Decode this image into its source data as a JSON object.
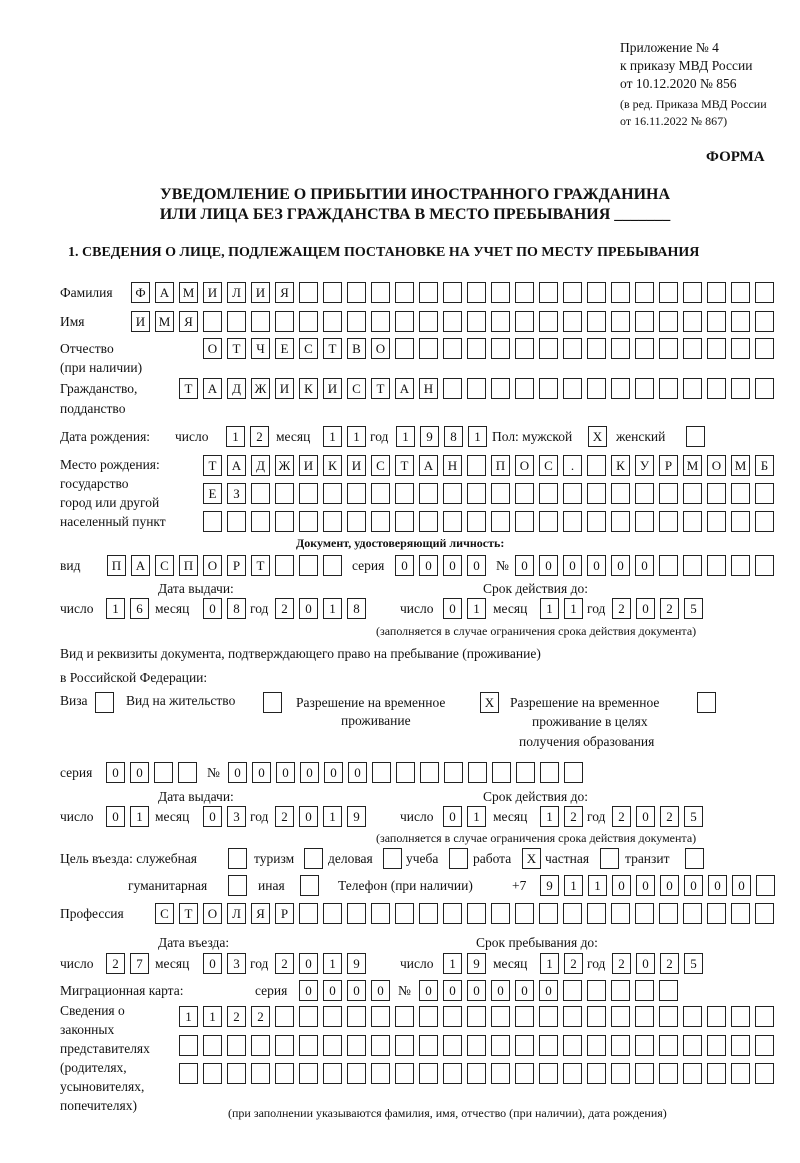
{
  "header": {
    "l1": "Приложение № 4",
    "l2": "к приказу МВД России",
    "l3": "от 10.12.2020 № 856",
    "l4": "(в ред. Приказа МВД России",
    "l5": "от 16.11.2022 № 867)",
    "forma": "ФОРМА"
  },
  "title": {
    "l1": "УВЕДОМЛЕНИЕ О ПРИБЫТИИ ИНОСТРАННОГО ГРАЖДАНИНА",
    "l2": "ИЛИ ЛИЦА БЕЗ ГРАЖДАНСТВА В МЕСТО ПРЕБЫВАНИЯ _______"
  },
  "section1": "1. СВЕДЕНИЯ О ЛИЦЕ, ПОДЛЕЖАЩЕМ ПОСТАНОВКЕ НА УЧЕТ ПО МЕСТУ ПРЕБЫВАНИЯ",
  "labels": {
    "surname": "Фамилия",
    "name": "Имя",
    "patronymic": "Отчество",
    "patronymic2": "(при наличии)",
    "citizenship": "Гражданство,",
    "citizenship2": "подданство",
    "birth_date": "Дата рождения:",
    "day": "число",
    "month": "месяц",
    "year": "год",
    "sex": "Пол: мужской",
    "female": "женский",
    "birthplace1": "Место рождения:",
    "birthplace2": "государство",
    "birthplace3": "город или другой",
    "birthplace4": "населенный пункт",
    "id_doc": "Документ, удостоверяющий личность:",
    "kind": "вид",
    "series": "серия",
    "number": "№",
    "issue_date": "Дата выдачи:",
    "valid_until": "Срок действия до:",
    "validity_note": "(заполняется в случае ограничения срока действия документа)",
    "stay_doc1": "Вид и реквизиты документа, подтверждающего право на пребывание (проживание)",
    "stay_doc2": "в Российской Федерации:",
    "visa": "Виза",
    "residence": "Вид на жительство",
    "temp1": "Разрешение на временное",
    "temp2": "проживание",
    "edu1": "Разрешение на временное",
    "edu2": "проживание в целях",
    "edu3": "получения образования",
    "purpose": "Цель въезда: служебная",
    "tourism": "туризм",
    "business": "деловая",
    "study": "учеба",
    "work": "работа",
    "private": "частная",
    "transit": "транзит",
    "humanitarian": "гуманитарная",
    "other": "иная",
    "phone": "Телефон (при наличии)",
    "phone_prefix": "+7",
    "profession": "Профессия",
    "entry_date": "Дата въезда:",
    "stay_until": "Срок пребывания до:",
    "migration_card": "Миграционная карта:",
    "reps1": "Сведения о",
    "reps2": "законных",
    "reps3": "представителях",
    "reps4": "(родителях,",
    "reps5": "усыновителях,",
    "reps6": "попечителях)",
    "reps_note": "(при заполнении указываются фамилия, имя, отчество (при наличии), дата рождения)"
  },
  "values": {
    "surname": "ФАМИЛИЯ",
    "name": "ИМЯ",
    "patronymic": "ОТЧЕСТВО",
    "citizenship": "ТАДЖИКИСТАН",
    "birth_day": "12",
    "birth_month": "11",
    "birth_year": "1981",
    "sex_male": "X",
    "sex_female": "",
    "birthplace1": "ТАДЖИКИСТАН ПОС. КУРМОМБ",
    "birthplace2": "ЕЗ",
    "birthplace3": "",
    "id_kind": "ПАСПОРТ",
    "id_series": "0000",
    "id_number": "000000",
    "id_issue_day": "16",
    "id_issue_month": "08",
    "id_issue_year": "2018",
    "id_valid_day": "01",
    "id_valid_month": "11",
    "id_valid_year": "2025",
    "visa": "",
    "residence": "",
    "temp_residence": "X",
    "edu_residence": "",
    "stay_series": "00",
    "stay_number": "000000",
    "stay_issue_day": "01",
    "stay_issue_month": "03",
    "stay_issue_year": "2019",
    "stay_valid_day": "01",
    "stay_valid_month": "12",
    "stay_valid_year": "2025",
    "p_service": "",
    "p_tourism": "",
    "p_business": "",
    "p_study": "",
    "p_work": "X",
    "p_private": "",
    "p_transit": "",
    "p_humanitarian": "",
    "p_other": "",
    "phone": "911000000",
    "profession": "СТОЛЯР",
    "entry_day": "27",
    "entry_month": "03",
    "entry_year": "2019",
    "until_day": "19",
    "until_month": "12",
    "until_year": "2025",
    "mc_series": "0000",
    "mc_number": "000000",
    "reps1": "1122",
    "reps2": "",
    "reps3": ""
  }
}
